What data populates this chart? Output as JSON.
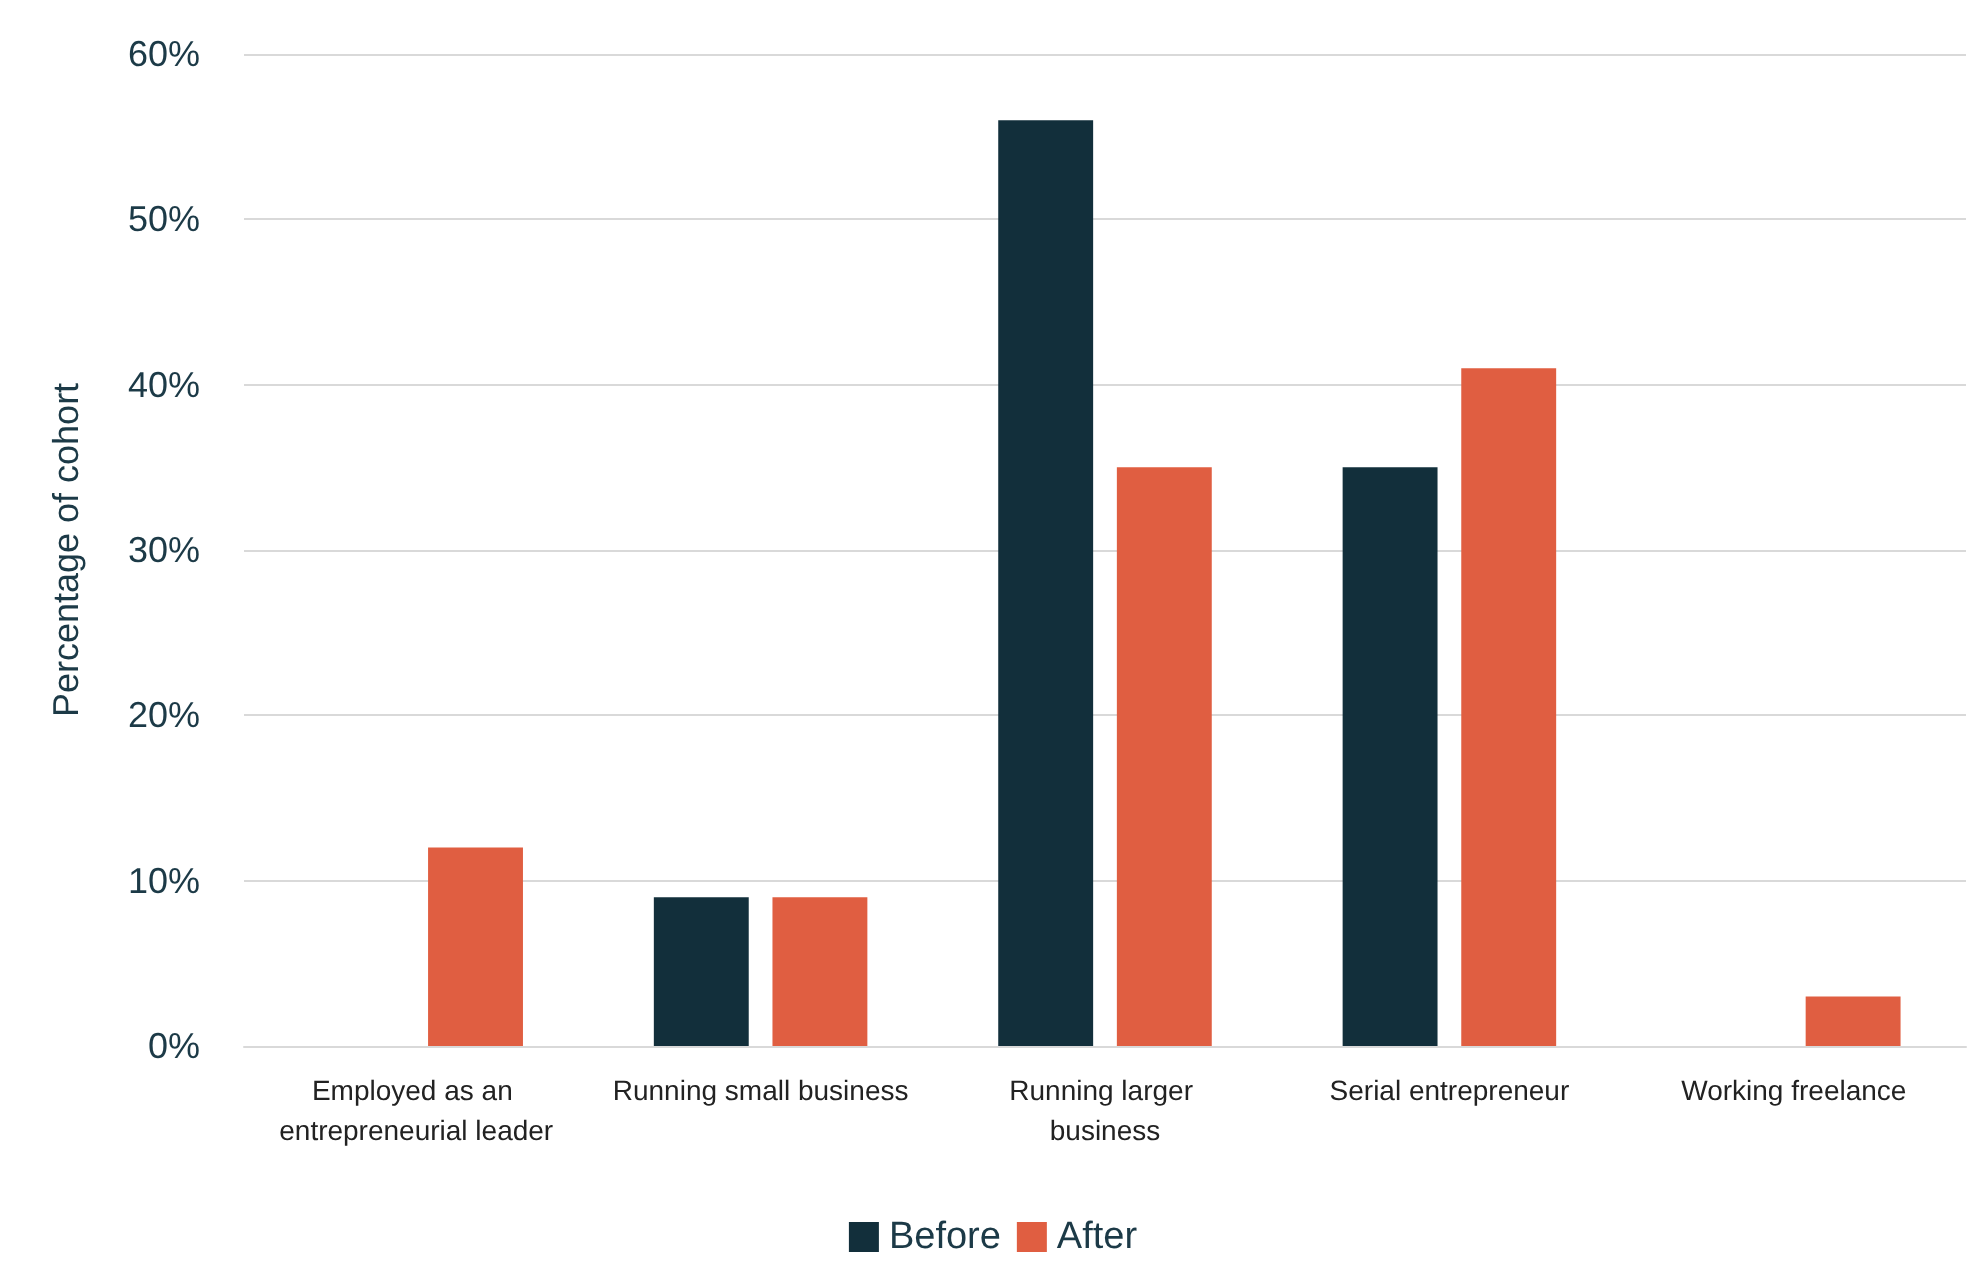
{
  "chart_data": {
    "type": "bar",
    "ylabel": "Percentage of cohort",
    "categories": [
      "Employed as an entrepreneurial leader",
      "Running small business",
      "Running larger business",
      "Serial entrepreneur",
      "Working freelance"
    ],
    "series": [
      {
        "name": "Before",
        "color": "#122f3b",
        "values": [
          0,
          9,
          56,
          35,
          0
        ]
      },
      {
        "name": "After",
        "color": "#e05e41",
        "values": [
          12,
          9,
          35,
          41,
          3
        ]
      }
    ],
    "ylim": [
      0,
      60
    ],
    "yticks": [
      {
        "value": 0,
        "label": "0%"
      },
      {
        "value": 10,
        "label": "10%"
      },
      {
        "value": 20,
        "label": "20%"
      },
      {
        "value": 30,
        "label": "30%"
      },
      {
        "value": 40,
        "label": "40%"
      },
      {
        "value": 50,
        "label": "50%"
      },
      {
        "value": 60,
        "label": "60%"
      }
    ],
    "grid": "y",
    "legend": "bottom"
  }
}
